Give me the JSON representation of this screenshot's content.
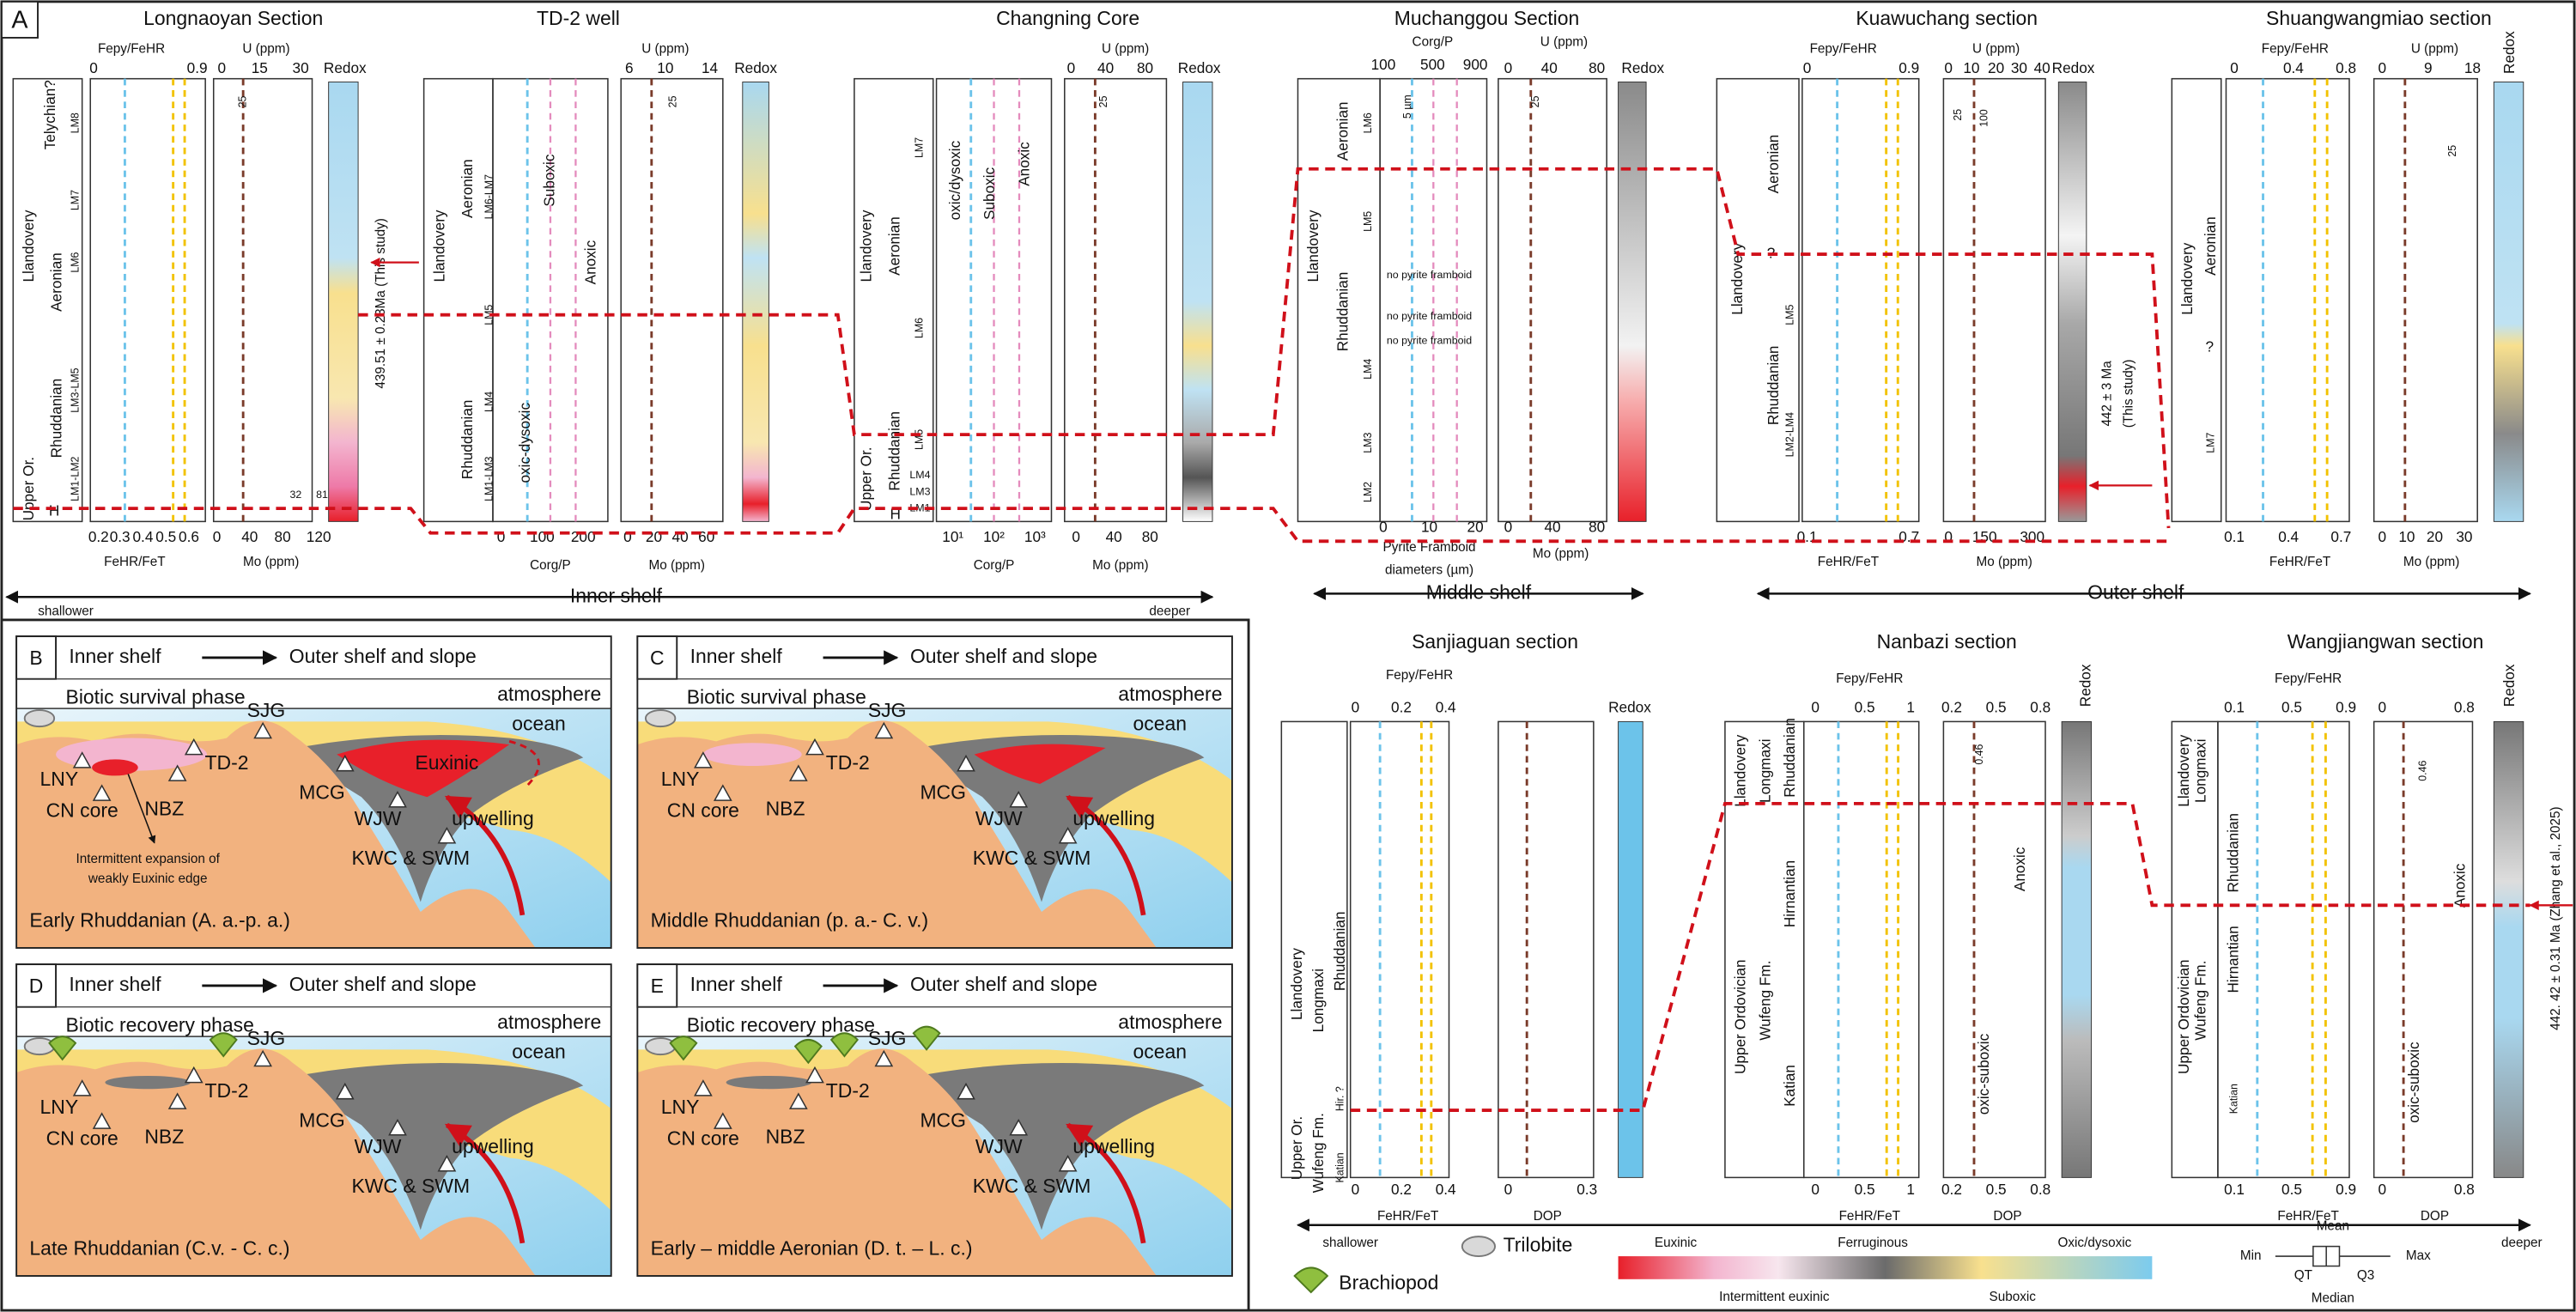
{
  "panel_a": {
    "label": "A",
    "sections": [
      {
        "title": "Longnaoyan Section",
        "labels": [
          "Fepy/FeHR",
          "U (ppm)",
          "0",
          "0.9",
          "0",
          "15",
          "30",
          "Redox",
          "Llandovery",
          "Telychian?",
          "Aeronian",
          "Rhuddanian",
          "Upper Or.",
          "H",
          "LM8",
          "LM7",
          "LM6",
          "LM3-LM5",
          "LM1-LM2",
          "0.2",
          "0.3",
          "0.4",
          "0.5",
          "0.6",
          "0",
          "40",
          "80",
          "120",
          "FeHR/FeT",
          "Mo (ppm)",
          "439.51 ± 0.23Ma (This study)",
          "25",
          "32",
          "81"
        ]
      },
      {
        "title": "TD-2 well",
        "labels": [
          "U (ppm)",
          "6",
          "10",
          "14",
          "Redox",
          "Llandovery",
          "Aeronian",
          "Rhuddanian",
          "LM6-LM7",
          "LM5",
          "LM4",
          "LM1-LM3",
          "Suboxic",
          "Anoxic",
          "oxic-dysoxic",
          "0",
          "100",
          "200",
          "0",
          "20",
          "40",
          "60",
          "Corg/P",
          "Mo (ppm)",
          "25"
        ]
      },
      {
        "title": "Changning Core",
        "labels": [
          "U (ppm)",
          "0",
          "40",
          "80",
          "Redox",
          "Llandovery",
          "Aeronian",
          "Rhuddanian",
          "Upper Or.",
          "H",
          "LM7",
          "LM6",
          "LM5",
          "LM4",
          "LM3",
          "LM1",
          "oxic/dysoxic",
          "Suboxic",
          "Anoxic",
          "10¹",
          "10²",
          "10³",
          "0",
          "40",
          "80",
          "Corg/P",
          "Mo (ppm)",
          "25"
        ]
      },
      {
        "title": "Muchanggou Section",
        "labels": [
          "Corg/P",
          "U (ppm)",
          "100",
          "500",
          "900",
          "0",
          "40",
          "80",
          "Redox",
          "Llandovery",
          "Aeronian",
          "Rhuddanian",
          "LM6",
          "LM5",
          "LM4",
          "LM3",
          "LM2",
          "5 µm",
          "no pyrite framboid",
          "no pyrite framboid",
          "no pyrite framboid",
          "0",
          "10",
          "20",
          "0",
          "40",
          "80",
          "Pyrite Framboid",
          "diameters (µm)",
          "Mo (ppm)",
          "25"
        ]
      },
      {
        "title": "Kuawuchang section",
        "labels": [
          "Fepy/FeHR",
          "U (ppm)",
          "0",
          "0.9",
          "0",
          "10",
          "20",
          "30",
          "40",
          "Redox",
          "Llandovery",
          "Aeronian",
          "Rhuddanian",
          "LM5",
          "LM2-LM4",
          "?",
          "442 ± 3 Ma",
          "(This study)",
          "0.1",
          "0.7",
          "0",
          "150",
          "300",
          "FeHR/FeT",
          "Mo (ppm)",
          "25",
          "100"
        ]
      },
      {
        "title": "Shuangwangmiao section",
        "labels": [
          "Fepy/FeHR",
          "U (ppm)",
          "0",
          "0.4",
          "0.8",
          "0",
          "9",
          "18",
          "Redox",
          "Llandovery",
          "Aeronian",
          "LM7",
          "?",
          "0.1",
          "0.4",
          "0.7",
          "0",
          "10",
          "20",
          "30",
          "FeHR/FeT",
          "Mo (ppm)",
          "25"
        ]
      },
      {
        "title": "Sanjiaguan section",
        "labels": [
          "Fepy/FeHR",
          "0",
          "0.2",
          "0.4",
          "Redox",
          "Llandovery",
          "Longmaxi",
          "Rhuddanian",
          "Upper Or.",
          "Wufeng Fm.",
          "Katian",
          "Hir. ?",
          "0",
          "0.2",
          "0.4",
          "0",
          "0.3",
          "FeHR/FeT",
          "DOP"
        ]
      },
      {
        "title": "Nanbazi section",
        "labels": [
          "Fepy/FeHR",
          "0",
          "0.5",
          "1",
          "0.2",
          "0.5",
          "0.8",
          "Redox",
          "Llandovery",
          "Longmaxi",
          "Rhuddanian",
          "Upper Ordovician",
          "Wufeng Fm.",
          "Hirnantian",
          "Katian",
          "0.46",
          "Anoxic",
          "oxic-suboxic",
          "0",
          "0.5",
          "1",
          "0.2",
          "0.5",
          "0.8",
          "FeHR/FeT",
          "DOP"
        ]
      },
      {
        "title": "Wangjiangwan section",
        "labels": [
          "Fepy/FeHR",
          "0.1",
          "0.5",
          "0.9",
          "0",
          "0.8",
          "Redox",
          "Llandovery",
          "Longmaxi",
          "Rhuddanian",
          "Upper Ordovician",
          "Wufeng Fm.",
          "Hirnantian",
          "Katian",
          "0.46",
          "Anoxic",
          "oxic-suboxic",
          "0.1",
          "0.5",
          "0.9",
          "0",
          "0.8",
          "FeHR/FeT",
          "DOP",
          "442. 42 ± 0.31 Ma (Zhang et al., 2025)"
        ]
      }
    ],
    "shelf_bar": {
      "shallower": "shallower",
      "inner": "Inner shelf",
      "deeper": "deeper",
      "middle": "Middle shelf",
      "outer": "Outer shelf"
    }
  },
  "panels": [
    {
      "label": "B",
      "inner": "Inner shelf",
      "outer": "Outer shelf and slope",
      "phase": "Biotic survival phase",
      "atmosphere": "atmosphere",
      "ocean": "ocean",
      "sites": [
        "LNY",
        "CN core",
        "NBZ",
        "TD-2",
        "SJG",
        "MCG",
        "WJW",
        "KWC & SWM"
      ],
      "upwelling": "upwelling",
      "euxinic": "Euxinic",
      "note": [
        "Intermittent expansion of",
        "weakly Euxinic edge"
      ],
      "caption": "Early Rhuddanian (A. a.-p. a.)"
    },
    {
      "label": "C",
      "inner": "Inner shelf",
      "outer": "Outer shelf and slope",
      "phase": "Biotic survival phase",
      "atmosphere": "atmosphere",
      "ocean": "ocean",
      "sites": [
        "LNY",
        "CN core",
        "NBZ",
        "TD-2",
        "SJG",
        "MCG",
        "WJW",
        "KWC & SWM"
      ],
      "upwelling": "upwelling",
      "caption": "Middle Rhuddanian (p. a.- C. v.)"
    },
    {
      "label": "D",
      "inner": "Inner shelf",
      "outer": "Outer shelf and slope",
      "phase": "Biotic recovery phase",
      "atmosphere": "atmosphere",
      "ocean": "ocean",
      "sites": [
        "LNY",
        "CN core",
        "NBZ",
        "TD-2",
        "SJG",
        "MCG",
        "WJW",
        "KWC & SWM"
      ],
      "upwelling": "upwelling",
      "caption": "Late Rhuddanian  (C.v. - C. c.)"
    },
    {
      "label": "E",
      "inner": "Inner shelf",
      "outer": "Outer shelf and slope",
      "phase": "Biotic recovery phase",
      "atmosphere": "atmosphere",
      "ocean": "ocean",
      "sites": [
        "LNY",
        "CN core",
        "NBZ",
        "TD-2",
        "SJG",
        "MCG",
        "WJW",
        "KWC & SWM"
      ],
      "upwelling": "upwelling",
      "caption": "Early – middle Aeronian (D. t. – L. c.)"
    }
  ],
  "legend": {
    "shallower": "shallower",
    "deeper": "deeper",
    "trilobite": "Trilobite",
    "brachiopod": "Brachiopod",
    "euxinic": "Euxinic",
    "ferruginous": "Ferruginous",
    "oxic": "Oxic/dysoxic",
    "intermittent": "Intermittent euxinic",
    "suboxic": "Suboxic",
    "min": "Min",
    "mean": "Mean",
    "max": "Max",
    "qt": "QT",
    "q3": "Q3",
    "median": "Median"
  }
}
